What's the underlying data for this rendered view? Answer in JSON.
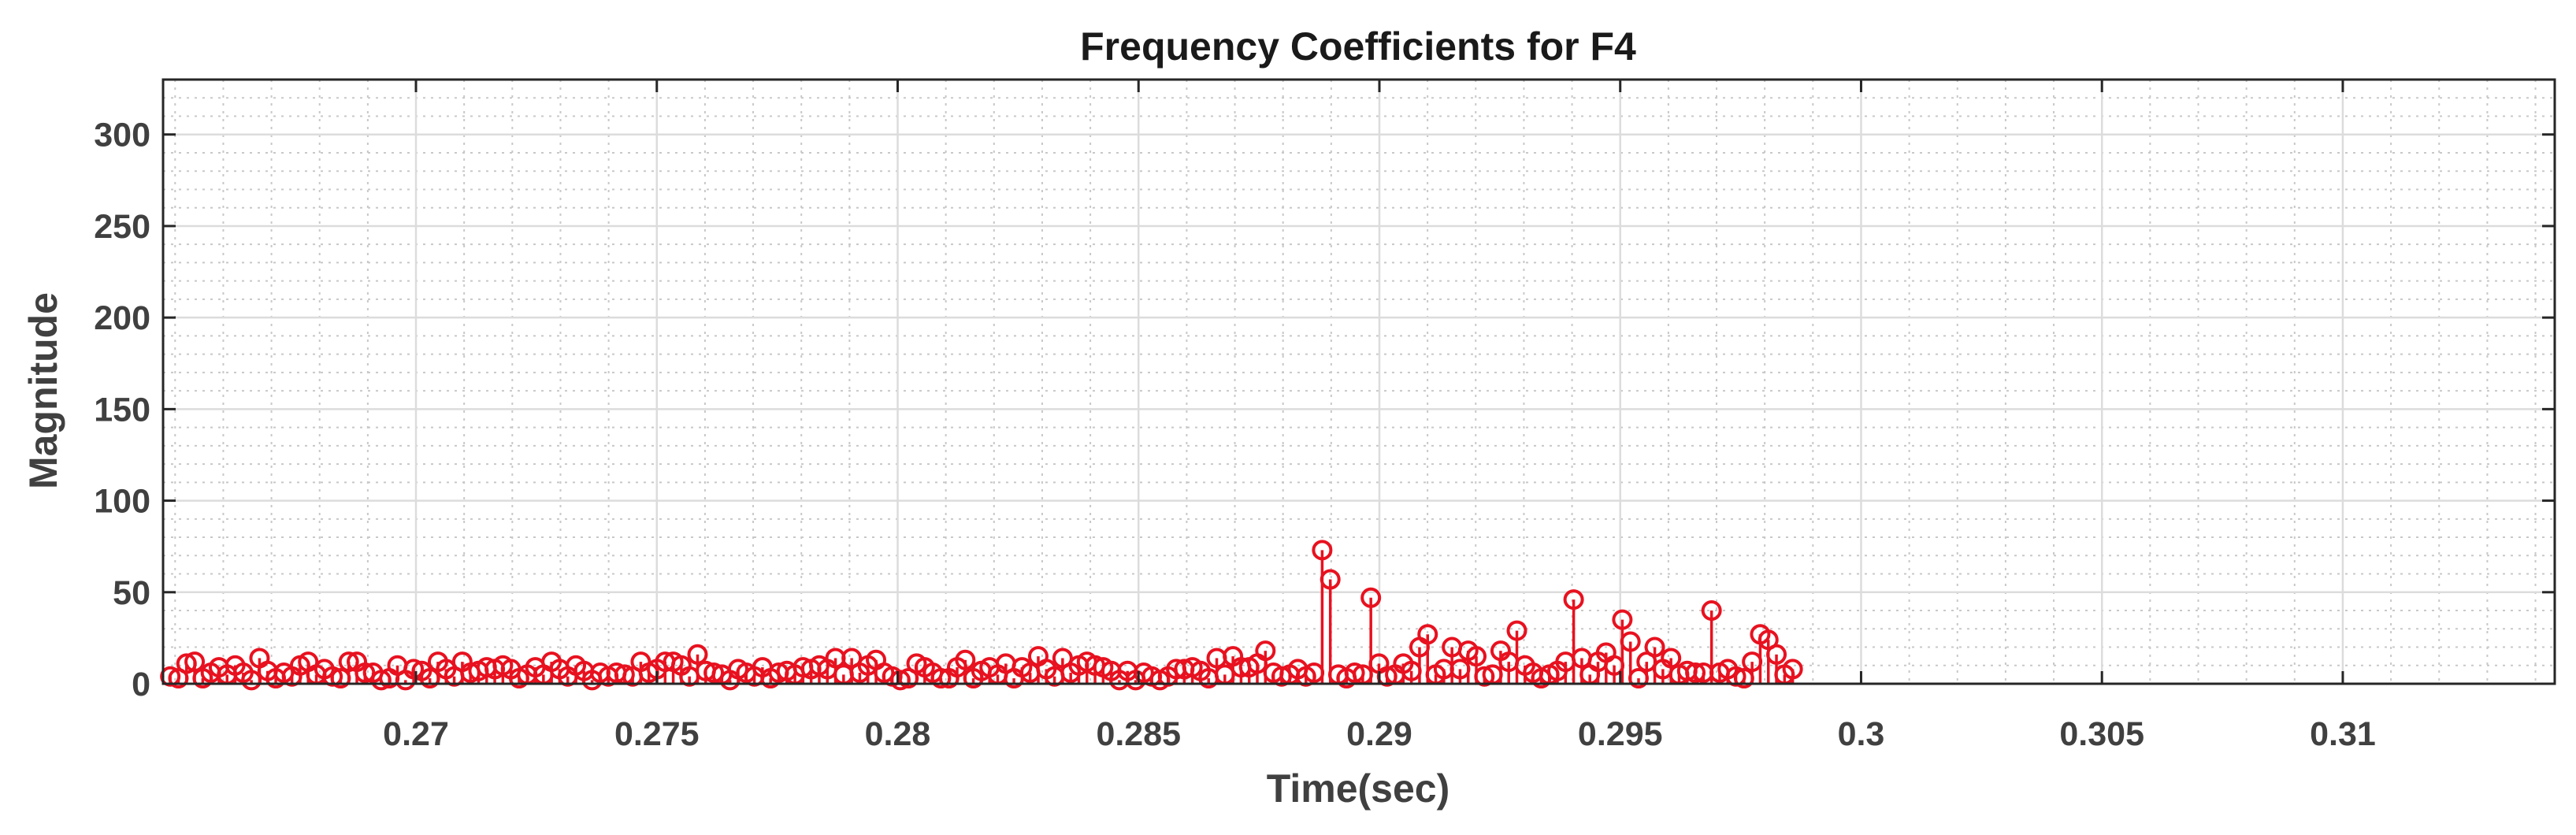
{
  "chart_data": {
    "type": "stem",
    "title": "Frequency Coefficients for F4",
    "xlabel": "Time(sec)",
    "ylabel": "Magnitude",
    "xlim": [
      0.26475,
      0.3144
    ],
    "ylim": [
      0,
      330
    ],
    "xticks": [
      0.27,
      0.275,
      0.28,
      0.285,
      0.29,
      0.295,
      0.3,
      0.305,
      0.31
    ],
    "xtick_labels": [
      "0.27",
      "0.275",
      "0.28",
      "0.285",
      "0.29",
      "0.295",
      "0.3",
      "0.305",
      "0.31"
    ],
    "yticks": [
      0,
      50,
      100,
      150,
      200,
      250,
      300
    ],
    "ytick_labels": [
      "0",
      "50",
      "100",
      "150",
      "200",
      "250",
      "300"
    ],
    "grid": true,
    "minor_grid": true,
    "colors": {
      "stem": "#e8111f",
      "axis": "#262626",
      "grid_major": "#dcdcdc",
      "grid_minor": "#c8c8c8"
    },
    "series": [
      {
        "x_start": 0.2649,
        "x_step": 0.0001684,
        "values": [
          4,
          3,
          11,
          12,
          3,
          6,
          9,
          5,
          10,
          6,
          2,
          14,
          7,
          3,
          6,
          4,
          10,
          12,
          5,
          8,
          4,
          3,
          12,
          12,
          6,
          6,
          2,
          3,
          10,
          2,
          8,
          7,
          3,
          12,
          8,
          4,
          12,
          6,
          7,
          9,
          8,
          10,
          8,
          3,
          5,
          9,
          5,
          12,
          8,
          4,
          10,
          7,
          2,
          6,
          4,
          6,
          5,
          4,
          12,
          6,
          8,
          12,
          12,
          10,
          4,
          16,
          7,
          6,
          5,
          2,
          8,
          6,
          4,
          9,
          3,
          6,
          7,
          5,
          9,
          8,
          10,
          8,
          14,
          5,
          14,
          6,
          10,
          13,
          6,
          4,
          2,
          3,
          11,
          9,
          6,
          3,
          3,
          9,
          13,
          3,
          7,
          9,
          5,
          11,
          3,
          9,
          6,
          15,
          8,
          4,
          14,
          6,
          10,
          12,
          10,
          9,
          7,
          2,
          7,
          2,
          6,
          4,
          2,
          4,
          8,
          8,
          9,
          7,
          3,
          14,
          5,
          15,
          9,
          9,
          11,
          18,
          6,
          4,
          5,
          8,
          4,
          6,
          73,
          57,
          5,
          3,
          6,
          5,
          47,
          11,
          4,
          5,
          11,
          7,
          20,
          27,
          5,
          8,
          20,
          8,
          18,
          15,
          4,
          5,
          18,
          12,
          29,
          10,
          6,
          3,
          5,
          7,
          12,
          46,
          14,
          5,
          12,
          17,
          10,
          35,
          23,
          3,
          12,
          20,
          8,
          14,
          5,
          7,
          6,
          6,
          40,
          6,
          8,
          4,
          3,
          12,
          27,
          24,
          16,
          5,
          8
        ]
      }
    ]
  }
}
